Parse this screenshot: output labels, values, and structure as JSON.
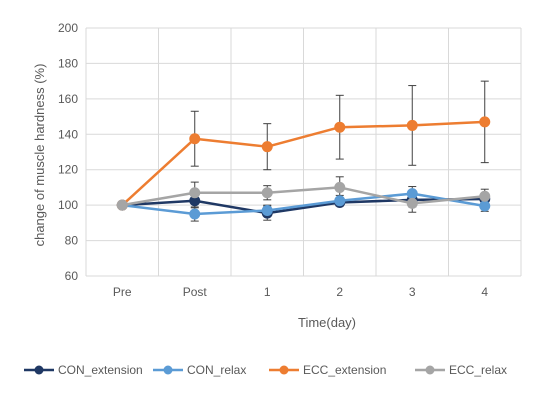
{
  "chart_data": {
    "type": "line",
    "title": "",
    "xlabel": "Time(day)",
    "ylabel": "change of muscle hardness (%)",
    "categories": [
      "Pre",
      "Post",
      "1",
      "2",
      "3",
      "4"
    ],
    "ylim": [
      60,
      200
    ],
    "yticks": [
      60,
      80,
      100,
      120,
      140,
      160,
      180,
      200
    ],
    "grid": true,
    "legend": "bottom",
    "series": [
      {
        "name": "CON_extension",
        "color": "#1f3864",
        "values": [
          100,
          102.5,
          95.5,
          101.5,
          103,
          103.5
        ],
        "errors": [
          0,
          4,
          4,
          2,
          4,
          3
        ]
      },
      {
        "name": "CON_relax",
        "color": "#5b9bd5",
        "values": [
          100,
          95,
          97,
          102.5,
          106.5,
          99.5
        ],
        "errors": [
          0,
          4,
          3,
          3,
          4,
          3
        ]
      },
      {
        "name": "ECC_extension",
        "color": "#ed7d31",
        "values": [
          100,
          137.5,
          133,
          144,
          145,
          147
        ],
        "errors": [
          0,
          15.5,
          13,
          18,
          22.5,
          23
        ]
      },
      {
        "name": "ECC_relax",
        "color": "#a5a5a5",
        "values": [
          100,
          107,
          107,
          110,
          101,
          105
        ],
        "errors": [
          0,
          6,
          4,
          6,
          5,
          4
        ]
      }
    ]
  }
}
